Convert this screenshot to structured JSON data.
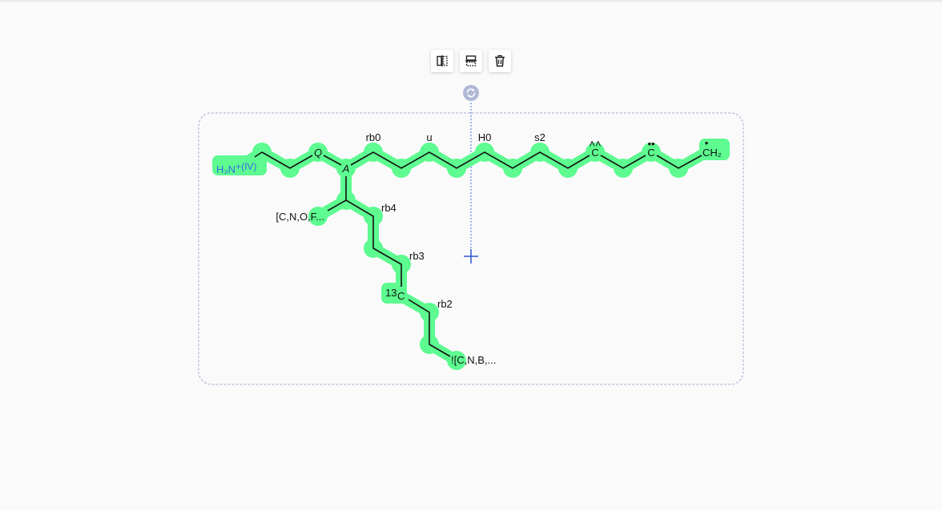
{
  "toolbar": {
    "buttons": [
      {
        "name": "flip-horizontal-button",
        "icon": "flip-horizontal-icon"
      },
      {
        "name": "flip-vertical-button",
        "icon": "flip-vertical-icon"
      },
      {
        "name": "delete-button",
        "icon": "trash-icon"
      }
    ]
  },
  "colors": {
    "highlight": "#5dfb90",
    "bond": "#111111",
    "selection_frame": "#a6acc8",
    "rotate_handle": "#b1b8d6",
    "crosshair": "#2f58d8",
    "charge_text": "#3a6ae0"
  },
  "molecule": {
    "labels": {
      "ammonium_main": "H₃N",
      "ammonium_charge": "+(IV)",
      "q_atom": "Q",
      "a_atom": "A",
      "rb0": "rb0",
      "u": "u",
      "h0": "H0",
      "s2": "s2",
      "c_radical1": "C",
      "c_radical1_mark": "˄˄",
      "c_radical2": "C",
      "c_radical2_mark": "••",
      "ch2_main": "CH₂",
      "ch2_mark": "•",
      "atom_list": "[C,N,O,F...",
      "rb4": "rb4",
      "rb3": "rb3",
      "isotope_mass": "13",
      "isotope_atom": "C",
      "rb2": "rb2",
      "not_list": "![C,N,B,..."
    }
  }
}
